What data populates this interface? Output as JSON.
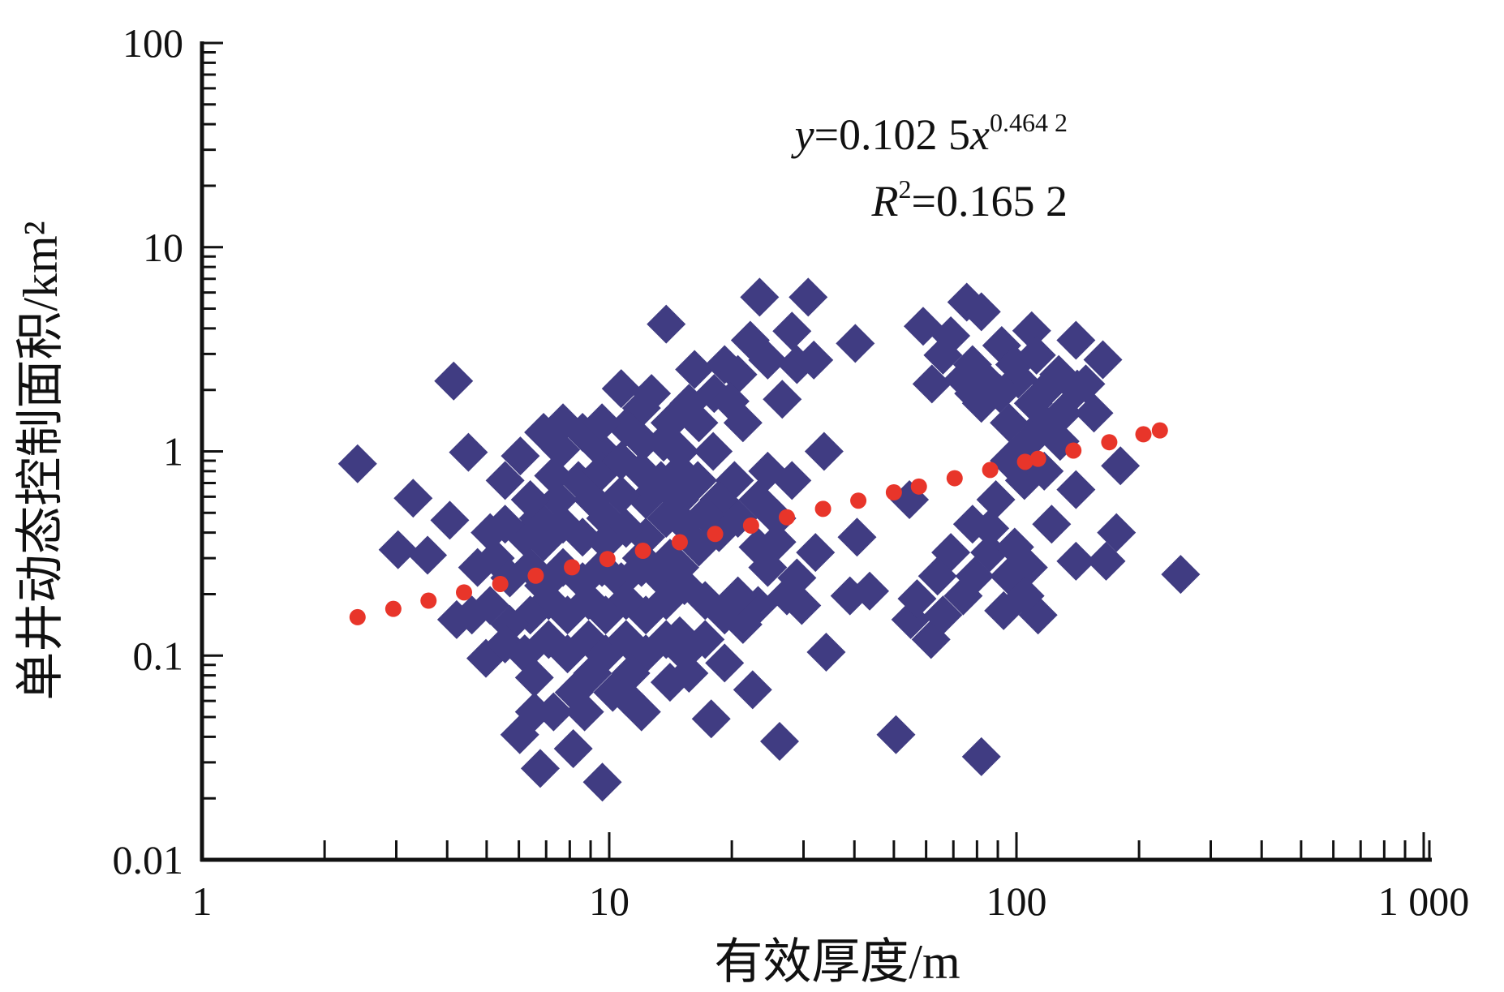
{
  "chart_data": {
    "type": "scatter",
    "xlabel": "有效厚度/m",
    "ylabel": "单井动态控制面积/km²",
    "xscale": "log",
    "yscale": "log",
    "xlim": [
      1,
      1000
    ],
    "ylim": [
      0.01,
      100
    ],
    "grid": false,
    "xticks": [
      {
        "value": 1,
        "label": "1"
      },
      {
        "value": 10,
        "label": "10"
      },
      {
        "value": 100,
        "label": "100"
      },
      {
        "value": 1000,
        "label": "1 000"
      }
    ],
    "yticks": [
      {
        "value": 0.01,
        "label": "0.01"
      },
      {
        "value": 0.1,
        "label": "0.1"
      },
      {
        "value": 1,
        "label": "1"
      },
      {
        "value": 10,
        "label": "10"
      },
      {
        "value": 100,
        "label": "100"
      }
    ],
    "series": [
      {
        "marker": "diamond",
        "color": "#403c82",
        "points": [
          [
            2.41,
            0.87
          ],
          [
            3.3,
            0.59
          ],
          [
            4.15,
            2.21
          ],
          [
            4.51,
            0.99
          ],
          [
            3.03,
            0.33
          ],
          [
            3.58,
            0.31
          ],
          [
            4.06,
            0.46
          ],
          [
            4.22,
            0.15
          ],
          [
            4.98,
            0.097
          ],
          [
            6.03,
            0.041
          ],
          [
            6.77,
            0.028
          ],
          [
            9.62,
            0.024
          ],
          [
            8.16,
            0.035
          ],
          [
            17.8,
            0.049
          ],
          [
            26.2,
            0.038
          ],
          [
            50.6,
            0.041
          ],
          [
            82,
            0.032
          ],
          [
            253,
            0.25
          ],
          [
            34.1,
            0.104
          ],
          [
            22.5,
            0.068
          ],
          [
            33.7,
            1.0
          ],
          [
            40.2,
            3.38
          ],
          [
            30.8,
            5.69
          ],
          [
            23.4,
            5.69
          ],
          [
            13.8,
            4.2
          ],
          [
            59,
            4.1
          ],
          [
            75.5,
            5.38
          ],
          [
            82,
            4.83
          ],
          [
            39,
            0.196
          ],
          [
            43.6,
            0.207
          ],
          [
            61.7,
            0.12
          ],
          [
            55,
            0.15
          ],
          [
            40.6,
            0.38
          ],
          [
            54.6,
            0.58
          ],
          [
            113,
            0.158
          ],
          [
            93,
            0.166
          ],
          [
            122,
            0.44
          ],
          [
            140,
            0.65
          ],
          [
            140,
            0.29
          ],
          [
            166,
            0.29
          ],
          [
            176,
            0.4
          ],
          [
            163,
            2.81
          ],
          [
            140,
            3.5
          ],
          [
            109,
            3.9
          ],
          [
            92,
            3.3
          ],
          [
            66,
            2.96
          ],
          [
            78.5,
            1.92
          ],
          [
            96,
            1.38
          ],
          [
            155,
            1.54
          ],
          [
            180,
            0.85
          ],
          [
            128,
            1.12
          ],
          [
            104.6,
            0.72
          ],
          [
            89,
            0.58
          ],
          [
            78,
            0.44
          ],
          [
            69,
            0.32
          ],
          [
            64,
            0.245
          ],
          [
            57,
            0.19
          ],
          [
            79,
            0.245
          ],
          [
            86,
            0.32
          ],
          [
            99,
            0.34
          ],
          [
            107,
            0.27
          ],
          [
            117,
            1.38
          ],
          [
            122,
            2.14
          ],
          [
            101,
            2.26
          ],
          [
            110,
            1.72
          ],
          [
            141,
            2.02
          ],
          [
            78,
            2.66
          ],
          [
            69,
            3.68
          ],
          [
            86,
            2.14
          ],
          [
            6.9,
            1.24
          ],
          [
            7.6,
            1.02
          ],
          [
            8.6,
            1.24
          ],
          [
            9.6,
            1.0
          ],
          [
            10.7,
            2.03
          ],
          [
            12,
            1.63
          ],
          [
            11,
            1.31
          ],
          [
            12.1,
            1.11
          ],
          [
            13.6,
            1.11
          ],
          [
            14.9,
            1.0
          ],
          [
            16.2,
            2.52
          ],
          [
            18.1,
            1.92
          ],
          [
            16.6,
            1.38
          ],
          [
            19.2,
            2.66
          ],
          [
            20.7,
            2.38
          ],
          [
            19.8,
            1.76
          ],
          [
            21.3,
            1.38
          ],
          [
            22.2,
            3.5
          ],
          [
            24.5,
            2.8
          ],
          [
            26.6,
            1.8
          ],
          [
            24.5,
            0.8
          ],
          [
            28.1,
            3.88
          ],
          [
            28.9,
            2.66
          ],
          [
            31.8,
            2.8
          ],
          [
            18,
            1.0
          ],
          [
            16.5,
            0.72
          ],
          [
            14.9,
            0.58
          ],
          [
            13.4,
            0.72
          ],
          [
            12.3,
            0.58
          ],
          [
            10.7,
            0.61
          ],
          [
            9.8,
            0.47
          ],
          [
            9.1,
            0.58
          ],
          [
            8.4,
            0.72
          ],
          [
            7.5,
            0.58
          ],
          [
            6.7,
            0.47
          ],
          [
            6.2,
            0.38
          ],
          [
            5.55,
            0.44
          ],
          [
            5.1,
            0.4
          ],
          [
            5.25,
            0.3
          ],
          [
            4.75,
            0.27
          ],
          [
            5.7,
            0.24
          ],
          [
            6.4,
            0.27
          ],
          [
            6.9,
            0.22
          ],
          [
            7.7,
            0.27
          ],
          [
            8.6,
            0.23
          ],
          [
            9.6,
            0.27
          ],
          [
            10.7,
            0.23
          ],
          [
            12,
            0.27
          ],
          [
            13.4,
            0.24
          ],
          [
            14.9,
            0.27
          ],
          [
            16.6,
            0.34
          ],
          [
            18.6,
            0.4
          ],
          [
            20.7,
            0.47
          ],
          [
            23.2,
            0.34
          ],
          [
            25.8,
            0.36
          ],
          [
            24.5,
            0.27
          ],
          [
            27.3,
            0.196
          ],
          [
            29.7,
            0.176
          ],
          [
            32.1,
            0.32
          ],
          [
            23.2,
            0.176
          ],
          [
            21.3,
            0.142
          ],
          [
            19.2,
            0.158
          ],
          [
            17.2,
            0.186
          ],
          [
            15.3,
            0.22
          ],
          [
            13.8,
            0.186
          ],
          [
            12.3,
            0.158
          ],
          [
            11,
            0.186
          ],
          [
            9.8,
            0.158
          ],
          [
            8.9,
            0.186
          ],
          [
            7.9,
            0.158
          ],
          [
            7.1,
            0.186
          ],
          [
            6.4,
            0.158
          ],
          [
            5.7,
            0.142
          ],
          [
            5.1,
            0.176
          ],
          [
            4.6,
            0.158
          ],
          [
            5.55,
            0.114
          ],
          [
            6.2,
            0.102
          ],
          [
            7.1,
            0.12
          ],
          [
            7.9,
            0.102
          ],
          [
            8.9,
            0.12
          ],
          [
            9.8,
            0.102
          ],
          [
            11,
            0.12
          ],
          [
            12.3,
            0.102
          ],
          [
            13.8,
            0.12
          ],
          [
            15.3,
            0.102
          ],
          [
            17.2,
            0.12
          ],
          [
            19.2,
            0.092
          ],
          [
            14.1,
            0.074
          ],
          [
            15.7,
            0.082
          ],
          [
            11.3,
            0.082
          ],
          [
            10.2,
            0.066
          ],
          [
            9.1,
            0.082
          ],
          [
            8.2,
            0.066
          ],
          [
            7.3,
            0.053
          ],
          [
            6.55,
            0.078
          ],
          [
            6.55,
            0.053
          ],
          [
            12,
            0.053
          ],
          [
            8.7,
            0.053
          ],
          [
            11,
            0.063
          ],
          [
            14.9,
            0.125
          ],
          [
            20.7,
            0.196
          ],
          [
            28.9,
            0.24
          ],
          [
            25.8,
            0.47
          ],
          [
            28.1,
            0.72
          ],
          [
            23.2,
            0.58
          ],
          [
            20.3,
            0.72
          ],
          [
            18.6,
            0.58
          ],
          [
            17.2,
            0.49
          ],
          [
            15.3,
            0.44
          ],
          [
            13.8,
            0.47
          ],
          [
            12.3,
            0.38
          ],
          [
            11,
            0.42
          ],
          [
            9.8,
            0.36
          ],
          [
            8.6,
            0.38
          ],
          [
            7.7,
            0.44
          ],
          [
            6.9,
            0.36
          ],
          [
            6.05,
            0.95
          ],
          [
            5.55,
            0.72
          ],
          [
            6.4,
            0.58
          ],
          [
            7.3,
            0.76
          ],
          [
            9.6,
            0.8
          ],
          [
            10.7,
            0.9
          ],
          [
            12,
            0.8
          ],
          [
            14.9,
            0.8
          ],
          [
            14.1,
            1.38
          ],
          [
            12.7,
            1.92
          ],
          [
            15.7,
            1.72
          ],
          [
            9.6,
            1.38
          ],
          [
            7.7,
            1.38
          ],
          [
            12,
            0.3
          ],
          [
            14.1,
            0.3
          ],
          [
            62,
            2.14
          ],
          [
            74,
            2.26
          ],
          [
            82,
            1.72
          ],
          [
            91,
            1.92
          ],
          [
            99,
            2.66
          ],
          [
            112,
            2.96
          ],
          [
            127,
            2.38
          ],
          [
            148,
            2.14
          ],
          [
            130,
            1.54
          ],
          [
            107,
            1.11
          ],
          [
            96,
            0.9
          ],
          [
            117,
            0.8
          ],
          [
            86,
            0.42
          ],
          [
            96,
            0.245
          ],
          [
            74,
            0.196
          ],
          [
            66,
            0.158
          ],
          [
            105,
            0.196
          ]
        ]
      }
    ],
    "trendline": {
      "type": "power",
      "coefficient": 0.1025,
      "exponent": 0.4642,
      "color": "#e8352a",
      "style": "dotted",
      "x": [
        2.41,
        2.95,
        3.6,
        4.4,
        5.4,
        6.6,
        8.1,
        9.9,
        12.1,
        14.9,
        18.2,
        22.3,
        27.3,
        33.5,
        40.9,
        50,
        57.6,
        70.5,
        86.2,
        105,
        113,
        138,
        169,
        205,
        225
      ]
    },
    "annotation": {
      "equation": {
        "lhs": "y",
        "coef": "=0.102 5",
        "var": "x",
        "exponent": "0.464 2"
      },
      "r2": {
        "var": "R",
        "sup": "2",
        "value": "=0.165 2"
      }
    }
  }
}
